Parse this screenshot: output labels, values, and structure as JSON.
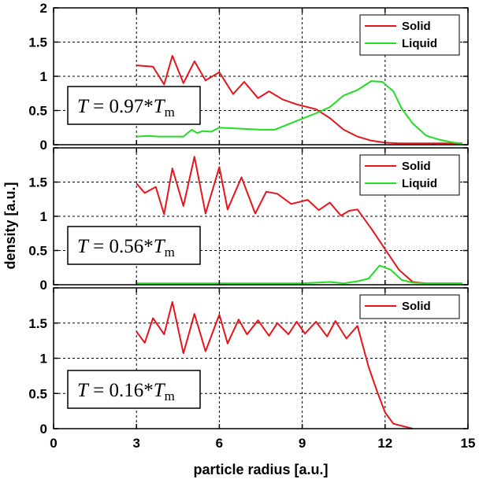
{
  "chart_data": {
    "type": "line",
    "xlabel": "particle radius [a.u.]",
    "ylabel": "density [a.u.]",
    "xlim": [
      0,
      15
    ],
    "x_ticks": [
      "0",
      "3",
      "6",
      "9",
      "12",
      "15"
    ],
    "grid": true,
    "panels": [
      {
        "annotation": {
          "prefix": "T = 0.97*T",
          "sub": "m"
        },
        "ylim": [
          0,
          2
        ],
        "y_ticks": [
          "0",
          "0.5",
          "1",
          "1.5",
          "2"
        ],
        "legend_position": "top-right",
        "series": [
          {
            "name": "Solid",
            "color": "#e8141b",
            "x": [
              3.0,
              3.6,
              4.0,
              4.3,
              4.7,
              5.1,
              5.5,
              6.0,
              6.5,
              6.9,
              7.4,
              7.8,
              8.3,
              8.8,
              9.5,
              10.0,
              10.5,
              11.0,
              11.5,
              12.0,
              12.5,
              13.0,
              13.5,
              14.0,
              14.5,
              14.8
            ],
            "y": [
              1.16,
              1.14,
              0.88,
              1.3,
              0.9,
              1.22,
              0.94,
              1.06,
              0.74,
              0.92,
              0.68,
              0.78,
              0.66,
              0.59,
              0.52,
              0.39,
              0.22,
              0.12,
              0.06,
              0.03,
              0.02,
              0.02,
              0.02,
              0.02,
              0.02,
              0.02
            ]
          },
          {
            "name": "Liquid",
            "color": "#22dd22",
            "x": [
              3.0,
              3.4,
              3.8,
              4.2,
              4.7,
              5.0,
              5.2,
              5.4,
              5.7,
              6.0,
              6.5,
              7.0,
              7.5,
              8.0,
              8.5,
              9.0,
              9.5,
              10.0,
              10.5,
              11.0,
              11.5,
              11.9,
              12.3,
              12.6,
              13.0,
              13.5,
              14.0,
              14.5,
              14.8
            ],
            "y": [
              0.12,
              0.13,
              0.12,
              0.12,
              0.12,
              0.22,
              0.17,
              0.2,
              0.19,
              0.25,
              0.24,
              0.23,
              0.22,
              0.22,
              0.3,
              0.38,
              0.46,
              0.55,
              0.72,
              0.8,
              0.93,
              0.92,
              0.78,
              0.53,
              0.31,
              0.13,
              0.07,
              0.03,
              0.02
            ]
          }
        ]
      },
      {
        "annotation": {
          "prefix": "T = 0.56*T",
          "sub": "m"
        },
        "ylim": [
          0,
          2
        ],
        "y_ticks": [
          "0",
          "0.5",
          "1",
          "1.5",
          ""
        ],
        "legend_position": "top-right",
        "series": [
          {
            "name": "Solid",
            "color": "#e8141b",
            "x": [
              3.0,
              3.3,
              3.7,
              4.0,
              4.3,
              4.7,
              5.1,
              5.5,
              6.0,
              6.3,
              6.8,
              7.3,
              7.7,
              8.1,
              8.6,
              9.2,
              9.6,
              10.0,
              10.4,
              10.7,
              11.0,
              11.5,
              12.0,
              12.5,
              13.0,
              13.5,
              14.0,
              14.5,
              14.8
            ],
            "y": [
              1.48,
              1.34,
              1.43,
              1.03,
              1.7,
              1.15,
              1.87,
              1.04,
              1.72,
              1.1,
              1.57,
              1.04,
              1.36,
              1.33,
              1.18,
              1.24,
              1.09,
              1.2,
              1.01,
              1.08,
              1.1,
              0.82,
              0.52,
              0.22,
              0.04,
              0.02,
              0.02,
              0.02,
              0.02
            ]
          },
          {
            "name": "Liquid",
            "color": "#22dd22",
            "x": [
              3.0,
              4.0,
              5.0,
              6.0,
              7.0,
              8.0,
              9.0,
              10.0,
              10.5,
              11.0,
              11.4,
              11.8,
              12.2,
              12.6,
              13.0,
              13.5,
              14.0,
              14.5,
              14.8
            ],
            "y": [
              0.02,
              0.02,
              0.02,
              0.02,
              0.02,
              0.02,
              0.02,
              0.04,
              0.02,
              0.05,
              0.09,
              0.28,
              0.22,
              0.07,
              0.03,
              0.02,
              0.02,
              0.02,
              0.02
            ]
          }
        ]
      },
      {
        "annotation": {
          "prefix": "T = 0.16*T",
          "sub": "m"
        },
        "ylim": [
          0,
          2
        ],
        "y_ticks": [
          "0",
          "0.5",
          "1",
          "1.5",
          ""
        ],
        "legend_position": "top-right",
        "series": [
          {
            "name": "Solid",
            "color": "#e8141b",
            "x": [
              3.0,
              3.3,
              3.6,
              4.0,
              4.3,
              4.7,
              5.1,
              5.5,
              6.0,
              6.3,
              6.7,
              7.0,
              7.4,
              7.8,
              8.1,
              8.5,
              8.8,
              9.1,
              9.5,
              9.9,
              10.2,
              10.6,
              11.0,
              11.4,
              11.7,
              12.0,
              12.3,
              12.8,
              13.0
            ],
            "y": [
              1.38,
              1.22,
              1.57,
              1.34,
              1.8,
              1.07,
              1.63,
              1.1,
              1.62,
              1.21,
              1.55,
              1.34,
              1.54,
              1.32,
              1.5,
              1.34,
              1.52,
              1.35,
              1.52,
              1.31,
              1.53,
              1.28,
              1.46,
              0.88,
              0.54,
              0.23,
              0.07,
              0.02,
              0.0
            ]
          }
        ]
      }
    ]
  }
}
